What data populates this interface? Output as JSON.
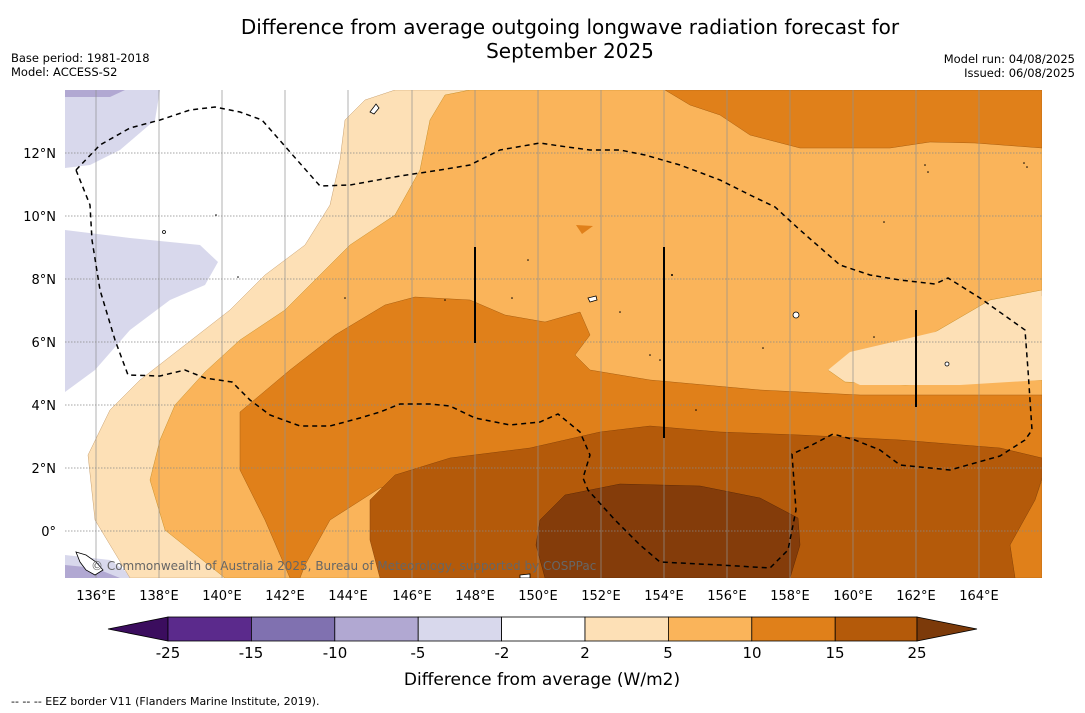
{
  "title_line1": "Difference from average outgoing longwave radiation forecast for",
  "title_line2": "September 2025",
  "base_period": "Base period: 1981-2018",
  "model": "Model: ACCESS-S2",
  "model_run": "Model run: 04/08/2025",
  "issued": "Issued: 06/08/2025",
  "copyright": "© Commonwealth of Australia 2025, Bureau of Meteorology, supported by COSPPac",
  "footnote": "--  --  -- EEZ border V11 (Flanders Marine Institute, 2019).",
  "map": {
    "lon_range": [
      135,
      166
    ],
    "lat_range": [
      -1.5,
      14
    ],
    "x_ticks": [
      "136°E",
      "138°E",
      "140°E",
      "142°E",
      "144°E",
      "146°E",
      "148°E",
      "150°E",
      "152°E",
      "154°E",
      "156°E",
      "158°E",
      "160°E",
      "162°E",
      "164°E"
    ],
    "y_ticks": [
      "12°N",
      "10°N",
      "8°N",
      "6°N",
      "4°N",
      "2°N",
      "0°"
    ]
  },
  "colorbar": {
    "label": "Difference from average (W/m2)",
    "ticks": [
      "-25",
      "-15",
      "-10",
      "-5",
      "-2",
      "2",
      "5",
      "10",
      "15",
      "25"
    ],
    "colors": [
      "#5b2a8c",
      "#8071b0",
      "#b1a8d2",
      "#d8d8ec",
      "#ffffff",
      "#fde0b6",
      "#fab45a",
      "#e0801a",
      "#b45a0a"
    ],
    "under_color": "#3b0d5e",
    "over_color": "#7c3a0a"
  },
  "colors": {
    "level_-10": "#b1a8d2",
    "level_-5": "#d8d8ec",
    "level_2": "#fde0b6",
    "level_5": "#fab45a",
    "level_10": "#e0801a",
    "level_15": "#b45a0a",
    "level_25": "#843c0a"
  }
}
